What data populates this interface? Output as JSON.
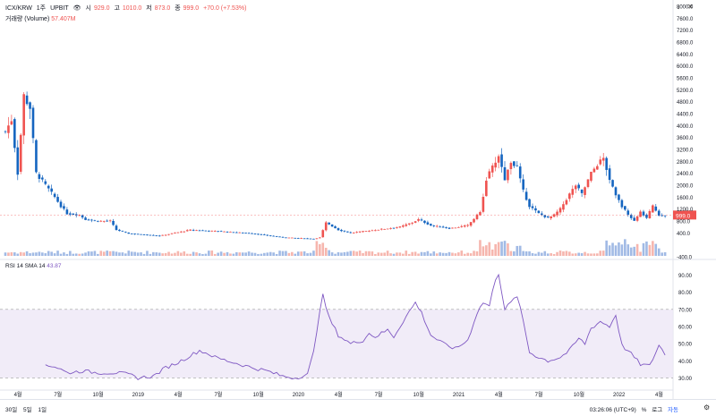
{
  "header": {
    "symbol": "ICX/KRW",
    "interval": "1주",
    "exchange": "UPBIT",
    "eye_icon": "eye-icon",
    "o_label": "시",
    "o_value": "929.0",
    "h_label": "고",
    "h_value": "1010.0",
    "l_label": "저",
    "l_value": "873.0",
    "c_label": "종",
    "c_value": "999.0",
    "change": "+70.0 (+7.53%)"
  },
  "volume_header": {
    "label": "거래량 (Volume)",
    "value": "57.407M"
  },
  "rsi_header": {
    "label": "RSI 14 SMA 14",
    "value": "43.87"
  },
  "price_label": "999.0",
  "bottom": {
    "ranges": [
      "30일",
      "5일",
      "1일"
    ],
    "time": "03:26:06 (UTC+9)",
    "pct": "%",
    "log": "로그",
    "auto": "자동"
  },
  "icons": {
    "settings": "gear-icon",
    "arrow": "arrow-down-icon",
    "close": "close-icon"
  },
  "colors": {
    "up": "#ef5350",
    "down": "#1565c0",
    "rsi": "#7e57c2",
    "rsi_band": "#ede7f6",
    "up_vol": "#f4a9a0",
    "down_vol": "#90aee0"
  },
  "chart_data": [
    {
      "type": "candlestick",
      "title": "ICX/KRW · 1주 · UPBIT",
      "x_ticks": [
        "4월",
        "7월",
        "10월",
        "2019",
        "4월",
        "7월",
        "10월",
        "2020",
        "4월",
        "7월",
        "10월",
        "2021",
        "4월",
        "7월",
        "10월",
        "2022",
        "4월"
      ],
      "y_ticks": [
        "-400.0",
        "400.0",
        "800.0",
        "1200.0",
        "1600.0",
        "2000.0",
        "2400.0",
        "2800.0",
        "3200.0",
        "3600.0",
        "4000.0",
        "4400.0",
        "4800.0",
        "5200.0",
        "5600.0",
        "6000.0",
        "6400.0",
        "6800.0",
        "7200.0",
        "7600.0",
        "8000.0"
      ],
      "ylim": [
        -400,
        8000
      ],
      "last_price": 999.0,
      "keypoints": [
        {
          "x": 0,
          "close": 3800
        },
        {
          "x": 2,
          "close": 4200
        },
        {
          "x": 4,
          "close": 2400
        },
        {
          "x": 6,
          "close": 5000
        },
        {
          "x": 8,
          "close": 4600
        },
        {
          "x": 10,
          "close": 2400
        },
        {
          "x": 13,
          "close": 2000
        },
        {
          "x": 16,
          "close": 1600
        },
        {
          "x": 18,
          "close": 1300
        },
        {
          "x": 20,
          "close": 1050
        },
        {
          "x": 24,
          "close": 1000
        },
        {
          "x": 26,
          "close": 850
        },
        {
          "x": 30,
          "close": 800
        },
        {
          "x": 34,
          "close": 800
        },
        {
          "x": 36,
          "close": 500
        },
        {
          "x": 40,
          "close": 380
        },
        {
          "x": 50,
          "close": 300
        },
        {
          "x": 60,
          "close": 500
        },
        {
          "x": 70,
          "close": 450
        },
        {
          "x": 80,
          "close": 380
        },
        {
          "x": 90,
          "close": 250
        },
        {
          "x": 100,
          "close": 200
        },
        {
          "x": 102,
          "close": 250
        },
        {
          "x": 104,
          "close": 750
        },
        {
          "x": 108,
          "close": 500
        },
        {
          "x": 112,
          "close": 400
        },
        {
          "x": 120,
          "close": 500
        },
        {
          "x": 128,
          "close": 600
        },
        {
          "x": 132,
          "close": 750
        },
        {
          "x": 134,
          "close": 850
        },
        {
          "x": 138,
          "close": 650
        },
        {
          "x": 144,
          "close": 550
        },
        {
          "x": 150,
          "close": 650
        },
        {
          "x": 154,
          "close": 1100
        },
        {
          "x": 156,
          "close": 2200
        },
        {
          "x": 158,
          "close": 2600
        },
        {
          "x": 160,
          "close": 3000
        },
        {
          "x": 162,
          "close": 2200
        },
        {
          "x": 164,
          "close": 2800
        },
        {
          "x": 166,
          "close": 2600
        },
        {
          "x": 168,
          "close": 1800
        },
        {
          "x": 170,
          "close": 1300
        },
        {
          "x": 173,
          "close": 1050
        },
        {
          "x": 176,
          "close": 900
        },
        {
          "x": 178,
          "close": 1000
        },
        {
          "x": 180,
          "close": 1200
        },
        {
          "x": 183,
          "close": 1700
        },
        {
          "x": 185,
          "close": 2000
        },
        {
          "x": 187,
          "close": 1700
        },
        {
          "x": 190,
          "close": 2400
        },
        {
          "x": 192,
          "close": 2700
        },
        {
          "x": 194,
          "close": 2900
        },
        {
          "x": 196,
          "close": 2200
        },
        {
          "x": 198,
          "close": 1700
        },
        {
          "x": 200,
          "close": 1300
        },
        {
          "x": 202,
          "close": 1000
        },
        {
          "x": 204,
          "close": 800
        },
        {
          "x": 206,
          "close": 1100
        },
        {
          "x": 208,
          "close": 900
        },
        {
          "x": 210,
          "close": 1300
        },
        {
          "x": 212,
          "close": 1000
        },
        {
          "x": 214,
          "close": 999
        }
      ]
    },
    {
      "type": "line",
      "title": "RSI 14 SMA 14",
      "y_ticks": [
        "30.00",
        "40.00",
        "50.00",
        "60.00",
        "70.00",
        "80.00",
        "90.00"
      ],
      "ylim": [
        25,
        95
      ],
      "band": [
        30,
        70
      ],
      "keypoints": [
        {
          "x": 13,
          "y": 38
        },
        {
          "x": 17,
          "y": 36
        },
        {
          "x": 20,
          "y": 33
        },
        {
          "x": 25,
          "y": 34
        },
        {
          "x": 30,
          "y": 33
        },
        {
          "x": 36,
          "y": 33
        },
        {
          "x": 40,
          "y": 32
        },
        {
          "x": 43,
          "y": 30
        },
        {
          "x": 48,
          "y": 31
        },
        {
          "x": 52,
          "y": 36
        },
        {
          "x": 56,
          "y": 39
        },
        {
          "x": 60,
          "y": 43
        },
        {
          "x": 63,
          "y": 46
        },
        {
          "x": 66,
          "y": 44
        },
        {
          "x": 68,
          "y": 42
        },
        {
          "x": 72,
          "y": 40
        },
        {
          "x": 76,
          "y": 38
        },
        {
          "x": 80,
          "y": 36
        },
        {
          "x": 85,
          "y": 34
        },
        {
          "x": 90,
          "y": 31
        },
        {
          "x": 94,
          "y": 30
        },
        {
          "x": 98,
          "y": 32
        },
        {
          "x": 100,
          "y": 45
        },
        {
          "x": 102,
          "y": 70
        },
        {
          "x": 103,
          "y": 78
        },
        {
          "x": 105,
          "y": 65
        },
        {
          "x": 108,
          "y": 55
        },
        {
          "x": 112,
          "y": 50
        },
        {
          "x": 116,
          "y": 52
        },
        {
          "x": 118,
          "y": 56
        },
        {
          "x": 120,
          "y": 54
        },
        {
          "x": 124,
          "y": 58
        },
        {
          "x": 126,
          "y": 54
        },
        {
          "x": 130,
          "y": 66
        },
        {
          "x": 133,
          "y": 74
        },
        {
          "x": 135,
          "y": 68
        },
        {
          "x": 138,
          "y": 55
        },
        {
          "x": 142,
          "y": 50
        },
        {
          "x": 146,
          "y": 47
        },
        {
          "x": 150,
          "y": 52
        },
        {
          "x": 153,
          "y": 68
        },
        {
          "x": 155,
          "y": 74
        },
        {
          "x": 157,
          "y": 72
        },
        {
          "x": 159,
          "y": 88
        },
        {
          "x": 160,
          "y": 91
        },
        {
          "x": 162,
          "y": 70
        },
        {
          "x": 164,
          "y": 74
        },
        {
          "x": 166,
          "y": 78
        },
        {
          "x": 168,
          "y": 63
        },
        {
          "x": 170,
          "y": 45
        },
        {
          "x": 173,
          "y": 42
        },
        {
          "x": 176,
          "y": 40
        },
        {
          "x": 180,
          "y": 42
        },
        {
          "x": 183,
          "y": 46
        },
        {
          "x": 186,
          "y": 53
        },
        {
          "x": 188,
          "y": 50
        },
        {
          "x": 190,
          "y": 59
        },
        {
          "x": 193,
          "y": 63
        },
        {
          "x": 196,
          "y": 60
        },
        {
          "x": 198,
          "y": 67
        },
        {
          "x": 200,
          "y": 49
        },
        {
          "x": 203,
          "y": 44
        },
        {
          "x": 206,
          "y": 38
        },
        {
          "x": 209,
          "y": 37
        },
        {
          "x": 212,
          "y": 49
        },
        {
          "x": 214,
          "y": 44
        }
      ]
    }
  ]
}
